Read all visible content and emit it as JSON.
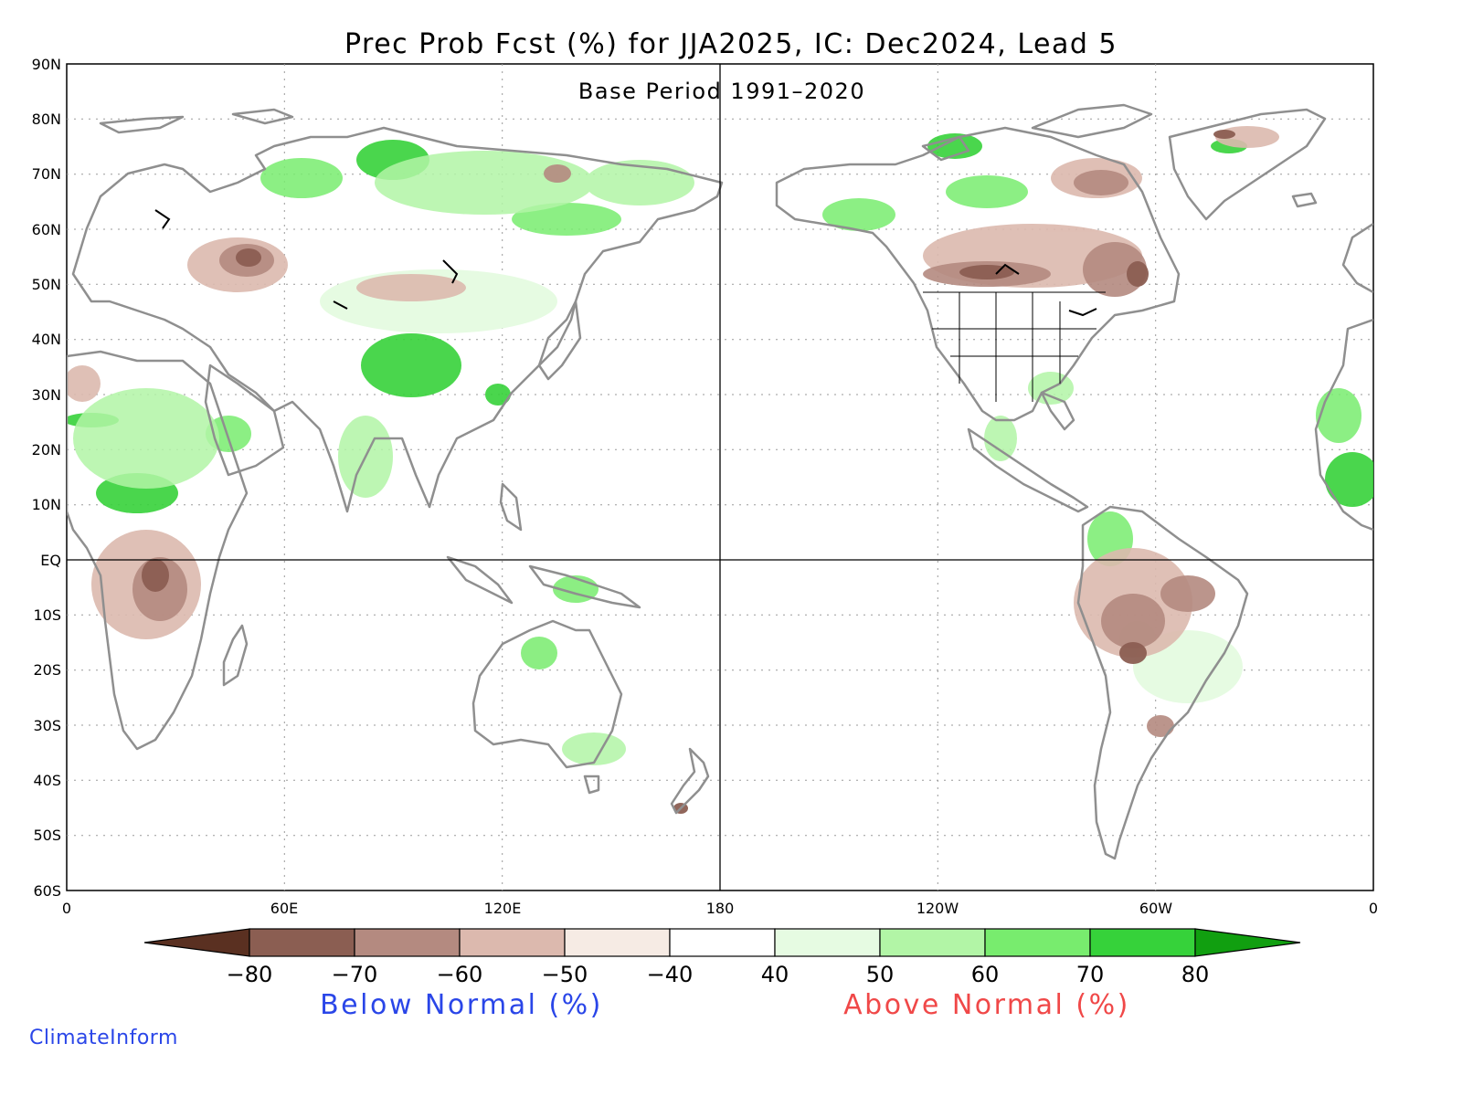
{
  "title": "Prec Prob Fcst (%) for JJA2025, IC: Dec2024, Lead 5",
  "subtitle": "Base Period 1991–2020",
  "axes": {
    "lat_labels": [
      "90N",
      "80N",
      "70N",
      "60N",
      "50N",
      "40N",
      "30N",
      "20N",
      "10N",
      "EQ",
      "10S",
      "20S",
      "30S",
      "40S",
      "50S",
      "60S"
    ],
    "lon_labels": [
      "0",
      "60E",
      "120E",
      "180",
      "120W",
      "60W",
      "0"
    ]
  },
  "legend": {
    "tick_labels": [
      "−80",
      "−70",
      "−60",
      "−50",
      "−40",
      "40",
      "50",
      "60",
      "70",
      "80"
    ],
    "below_label": "Below Normal (%)",
    "above_label": "Above Normal (%)",
    "colors_below": [
      "#5a3021",
      "#8b5e52",
      "#b48a80",
      "#dcb9ae",
      "#f6ebe4"
    ],
    "color_neutral": "#ffffff",
    "colors_above": [
      "#e6fbe2",
      "#b2f5a6",
      "#78ec6e",
      "#36d23a",
      "#119f10"
    ]
  },
  "brand": "ClimateInform",
  "colors": {
    "below_text": "#2a46e8",
    "above_text": "#f04848",
    "brand_text": "#2a46e8",
    "coast": "#8f8f8f"
  }
}
